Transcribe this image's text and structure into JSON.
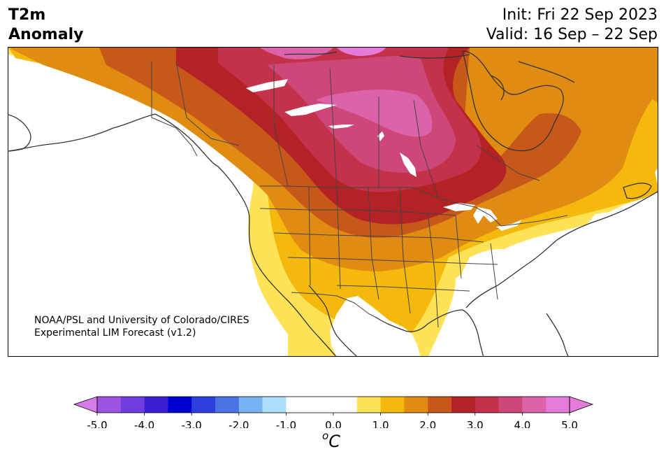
{
  "header": {
    "title_line1": "T2m",
    "title_line2": "Anomaly",
    "init_text": "Init: Fri 22 Sep 2023",
    "valid_text": "Valid: 16 Sep – 22 Sep"
  },
  "credit": {
    "line1": "NOAA/PSL and University of Colorado/CIRES",
    "line2": "Experimental LIM Forecast (v1.2)"
  },
  "colorbar": {
    "unit_prefix": "o",
    "unit_symbol": "C",
    "tick_labels": [
      "-5.0",
      "-4.0",
      "-3.0",
      "-2.0",
      "-1.0",
      "0.0",
      "1.0",
      "2.0",
      "3.0",
      "4.0",
      "5.0"
    ],
    "bins": [
      {
        "from": -5.0,
        "to": -4.5,
        "color": "#9b55e0"
      },
      {
        "from": -4.5,
        "to": -4.0,
        "color": "#6f3ce0"
      },
      {
        "from": -4.0,
        "to": -3.5,
        "color": "#3a1ed3"
      },
      {
        "from": -3.5,
        "to": -3.0,
        "color": "#0000d0"
      },
      {
        "from": -3.0,
        "to": -2.5,
        "color": "#2a3fdc"
      },
      {
        "from": -2.5,
        "to": -2.0,
        "color": "#4a73e3"
      },
      {
        "from": -2.0,
        "to": -1.5,
        "color": "#78b2f2"
      },
      {
        "from": -1.5,
        "to": -1.0,
        "color": "#addefc"
      },
      {
        "from": -1.0,
        "to": 0.5,
        "color": "#ffffff"
      },
      {
        "from": 0.5,
        "to": 1.0,
        "color": "#ffe255"
      },
      {
        "from": 1.0,
        "to": 1.5,
        "color": "#f4b90c"
      },
      {
        "from": 1.5,
        "to": 2.0,
        "color": "#e08b12"
      },
      {
        "from": 2.0,
        "to": 2.5,
        "color": "#c7581a"
      },
      {
        "from": 2.5,
        "to": 3.0,
        "color": "#b32325"
      },
      {
        "from": 3.0,
        "to": 3.5,
        "color": "#c3324a"
      },
      {
        "from": 3.5,
        "to": 4.0,
        "color": "#cd4778"
      },
      {
        "from": 4.0,
        "to": 4.5,
        "color": "#dc62aa"
      },
      {
        "from": 4.5,
        "to": 5.0,
        "color": "#e57bd9"
      }
    ],
    "extend_min_color": "#d57bea",
    "extend_max_color": "#e57bd9"
  },
  "map_colors": {
    "land_neutral": "#ffffff",
    "ocean": "#ffffff",
    "coast": "#333333",
    "border": "#444444"
  }
}
